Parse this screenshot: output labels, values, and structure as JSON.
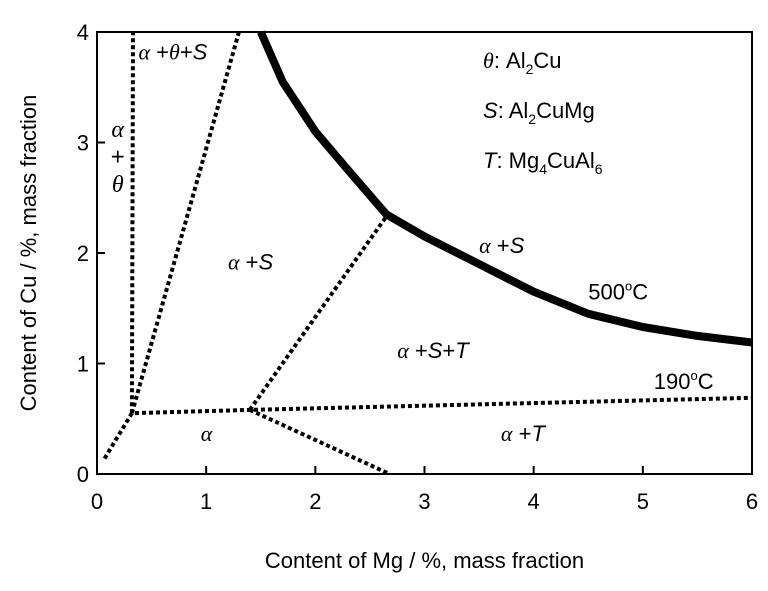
{
  "chart_data": {
    "type": "line",
    "xlabel": "Content of Mg / %, mass fraction",
    "ylabel": "Content of Cu / %, mass fraction",
    "xlim": [
      0,
      6
    ],
    "ylim": [
      0,
      4
    ],
    "xticks": [
      "0",
      "1",
      "2",
      "3",
      "4",
      "5",
      "6"
    ],
    "yticks": [
      "0",
      "1",
      "2",
      "3",
      "4"
    ],
    "grid": false,
    "solvus_500": {
      "label": "500°C",
      "points": [
        [
          1.5,
          4.0
        ],
        [
          1.7,
          3.55
        ],
        [
          2.0,
          3.1
        ],
        [
          2.3,
          2.75
        ],
        [
          2.65,
          2.35
        ],
        [
          3.0,
          2.15
        ],
        [
          3.5,
          1.9
        ],
        [
          4.0,
          1.65
        ],
        [
          4.5,
          1.45
        ],
        [
          5.0,
          1.33
        ],
        [
          5.5,
          1.25
        ],
        [
          6.0,
          1.19
        ]
      ]
    },
    "solvus_190": {
      "label": "190°C",
      "points": [
        [
          0.07,
          0.14
        ],
        [
          0.32,
          0.55
        ],
        [
          1.4,
          0.58
        ],
        [
          6.0,
          0.69
        ]
      ]
    },
    "phase_boundaries": [
      {
        "points": [
          [
            0.32,
            0.55
          ],
          [
            0.33,
            4.0
          ]
        ]
      },
      {
        "points": [
          [
            0.32,
            0.55
          ],
          [
            1.3,
            4.0
          ]
        ]
      },
      {
        "points": [
          [
            1.4,
            0.58
          ],
          [
            2.65,
            2.33
          ]
        ]
      },
      {
        "points": [
          [
            1.4,
            0.58
          ],
          [
            2.68,
            0.0
          ]
        ]
      }
    ],
    "region_labels": [
      {
        "greek": "α",
        "connector": " +",
        "greek2": "θ",
        "tail": "+",
        "tail_italic": "S",
        "x": 0.38,
        "y": 3.75
      },
      {
        "greek": "α",
        "tail": " +",
        "tail_italic": "S",
        "x": 1.2,
        "y": 1.85
      },
      {
        "greek": "α",
        "tail": " +",
        "tail_italic": "S",
        "x": 3.5,
        "y": 2.0
      },
      {
        "greek": "α",
        "tail": " +",
        "tail_italic": "S",
        "tail2": "+",
        "tail2_italic": "T",
        "x": 2.75,
        "y": 1.05
      },
      {
        "greek": "α",
        "tail": " +",
        "tail_italic": "T",
        "x": 3.7,
        "y": 0.3
      },
      {
        "greek": "α",
        "x": 0.95,
        "y": 0.3
      }
    ],
    "alpha_theta_label": {
      "top": "α",
      "mid": "+",
      "bottom": "θ"
    },
    "legend": [
      {
        "symbol": "θ",
        "text": ": Al",
        "sub": "2",
        "text2": "Cu",
        "sub2": "",
        "text3": ""
      },
      {
        "symbol": "S",
        "text": ": Al",
        "sub": "2",
        "text2": "CuMg",
        "sub2": "",
        "text3": ""
      },
      {
        "symbol": "T",
        "text": ": Mg",
        "sub": "4",
        "text2": "CuAl",
        "sub2": "6",
        "text3": ""
      }
    ],
    "temp_labels": [
      {
        "value": "500",
        "unit": "C",
        "deg": "o",
        "x": 4.5,
        "y": 1.58
      },
      {
        "value": "190",
        "unit": "C",
        "deg": "o",
        "x": 5.1,
        "y": 0.77
      }
    ]
  }
}
